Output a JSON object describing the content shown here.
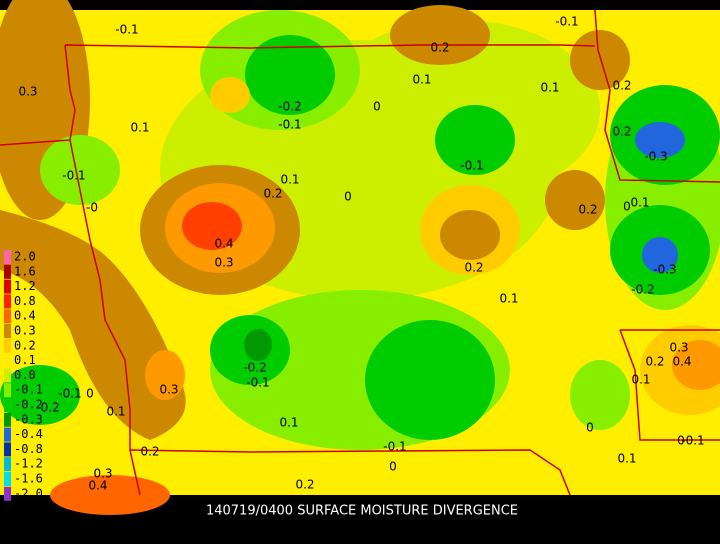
{
  "caption": "140719/0400 SURFACE MOISTURE DIVERGENCE",
  "legend": [
    {
      "label": "2.0",
      "color": "#ff66aa"
    },
    {
      "label": "1.6",
      "color": "#aa0000"
    },
    {
      "label": "1.2",
      "color": "#dd0000"
    },
    {
      "label": "0.8",
      "color": "#ff2000"
    },
    {
      "label": "0.4",
      "color": "#ff6600"
    },
    {
      "label": "0.3",
      "color": "#cc8800"
    },
    {
      "label": "0.2",
      "color": "#ffcc00"
    },
    {
      "label": "0.1",
      "color": "#ffee00"
    },
    {
      "label": "0.0",
      "color": "#ccee00"
    },
    {
      "label": "-0.1",
      "color": "#88ee00"
    },
    {
      "label": "-0.2",
      "color": "#00cc00"
    },
    {
      "label": "-0.3",
      "color": "#009900"
    },
    {
      "label": "-0.4",
      "color": "#2266dd"
    },
    {
      "label": "-0.8",
      "color": "#0033aa"
    },
    {
      "label": "-1.2",
      "color": "#00bbdd"
    },
    {
      "label": "-1.6",
      "color": "#00ddee"
    },
    {
      "label": "-2.0",
      "color": "#8833cc"
    }
  ],
  "contour_labels": [
    "-0.1",
    "0.2",
    "-0.1",
    "0.3",
    "0.1",
    "0.1",
    "0.2",
    "0.1",
    "-0.2",
    "-0.1",
    "0",
    "0.2",
    "-0.3",
    "-0.1",
    "-0.1",
    "0.1",
    "0.2",
    "0",
    "0.2",
    "0",
    "0.1",
    "-0",
    "0.4",
    "0.3",
    "0.2",
    "-0.3",
    "0.1",
    "-0.2",
    "0.3",
    "-0.2",
    "-0.1",
    "0.3",
    "0.2",
    "0.4",
    "0.1",
    "-0.1",
    "0",
    "-0.2",
    "0.1",
    "0.1",
    "0",
    "-0.1",
    "0.2",
    "-0.1",
    "0",
    "0.1",
    "0",
    "0.3",
    "0.4",
    "0.2"
  ]
}
